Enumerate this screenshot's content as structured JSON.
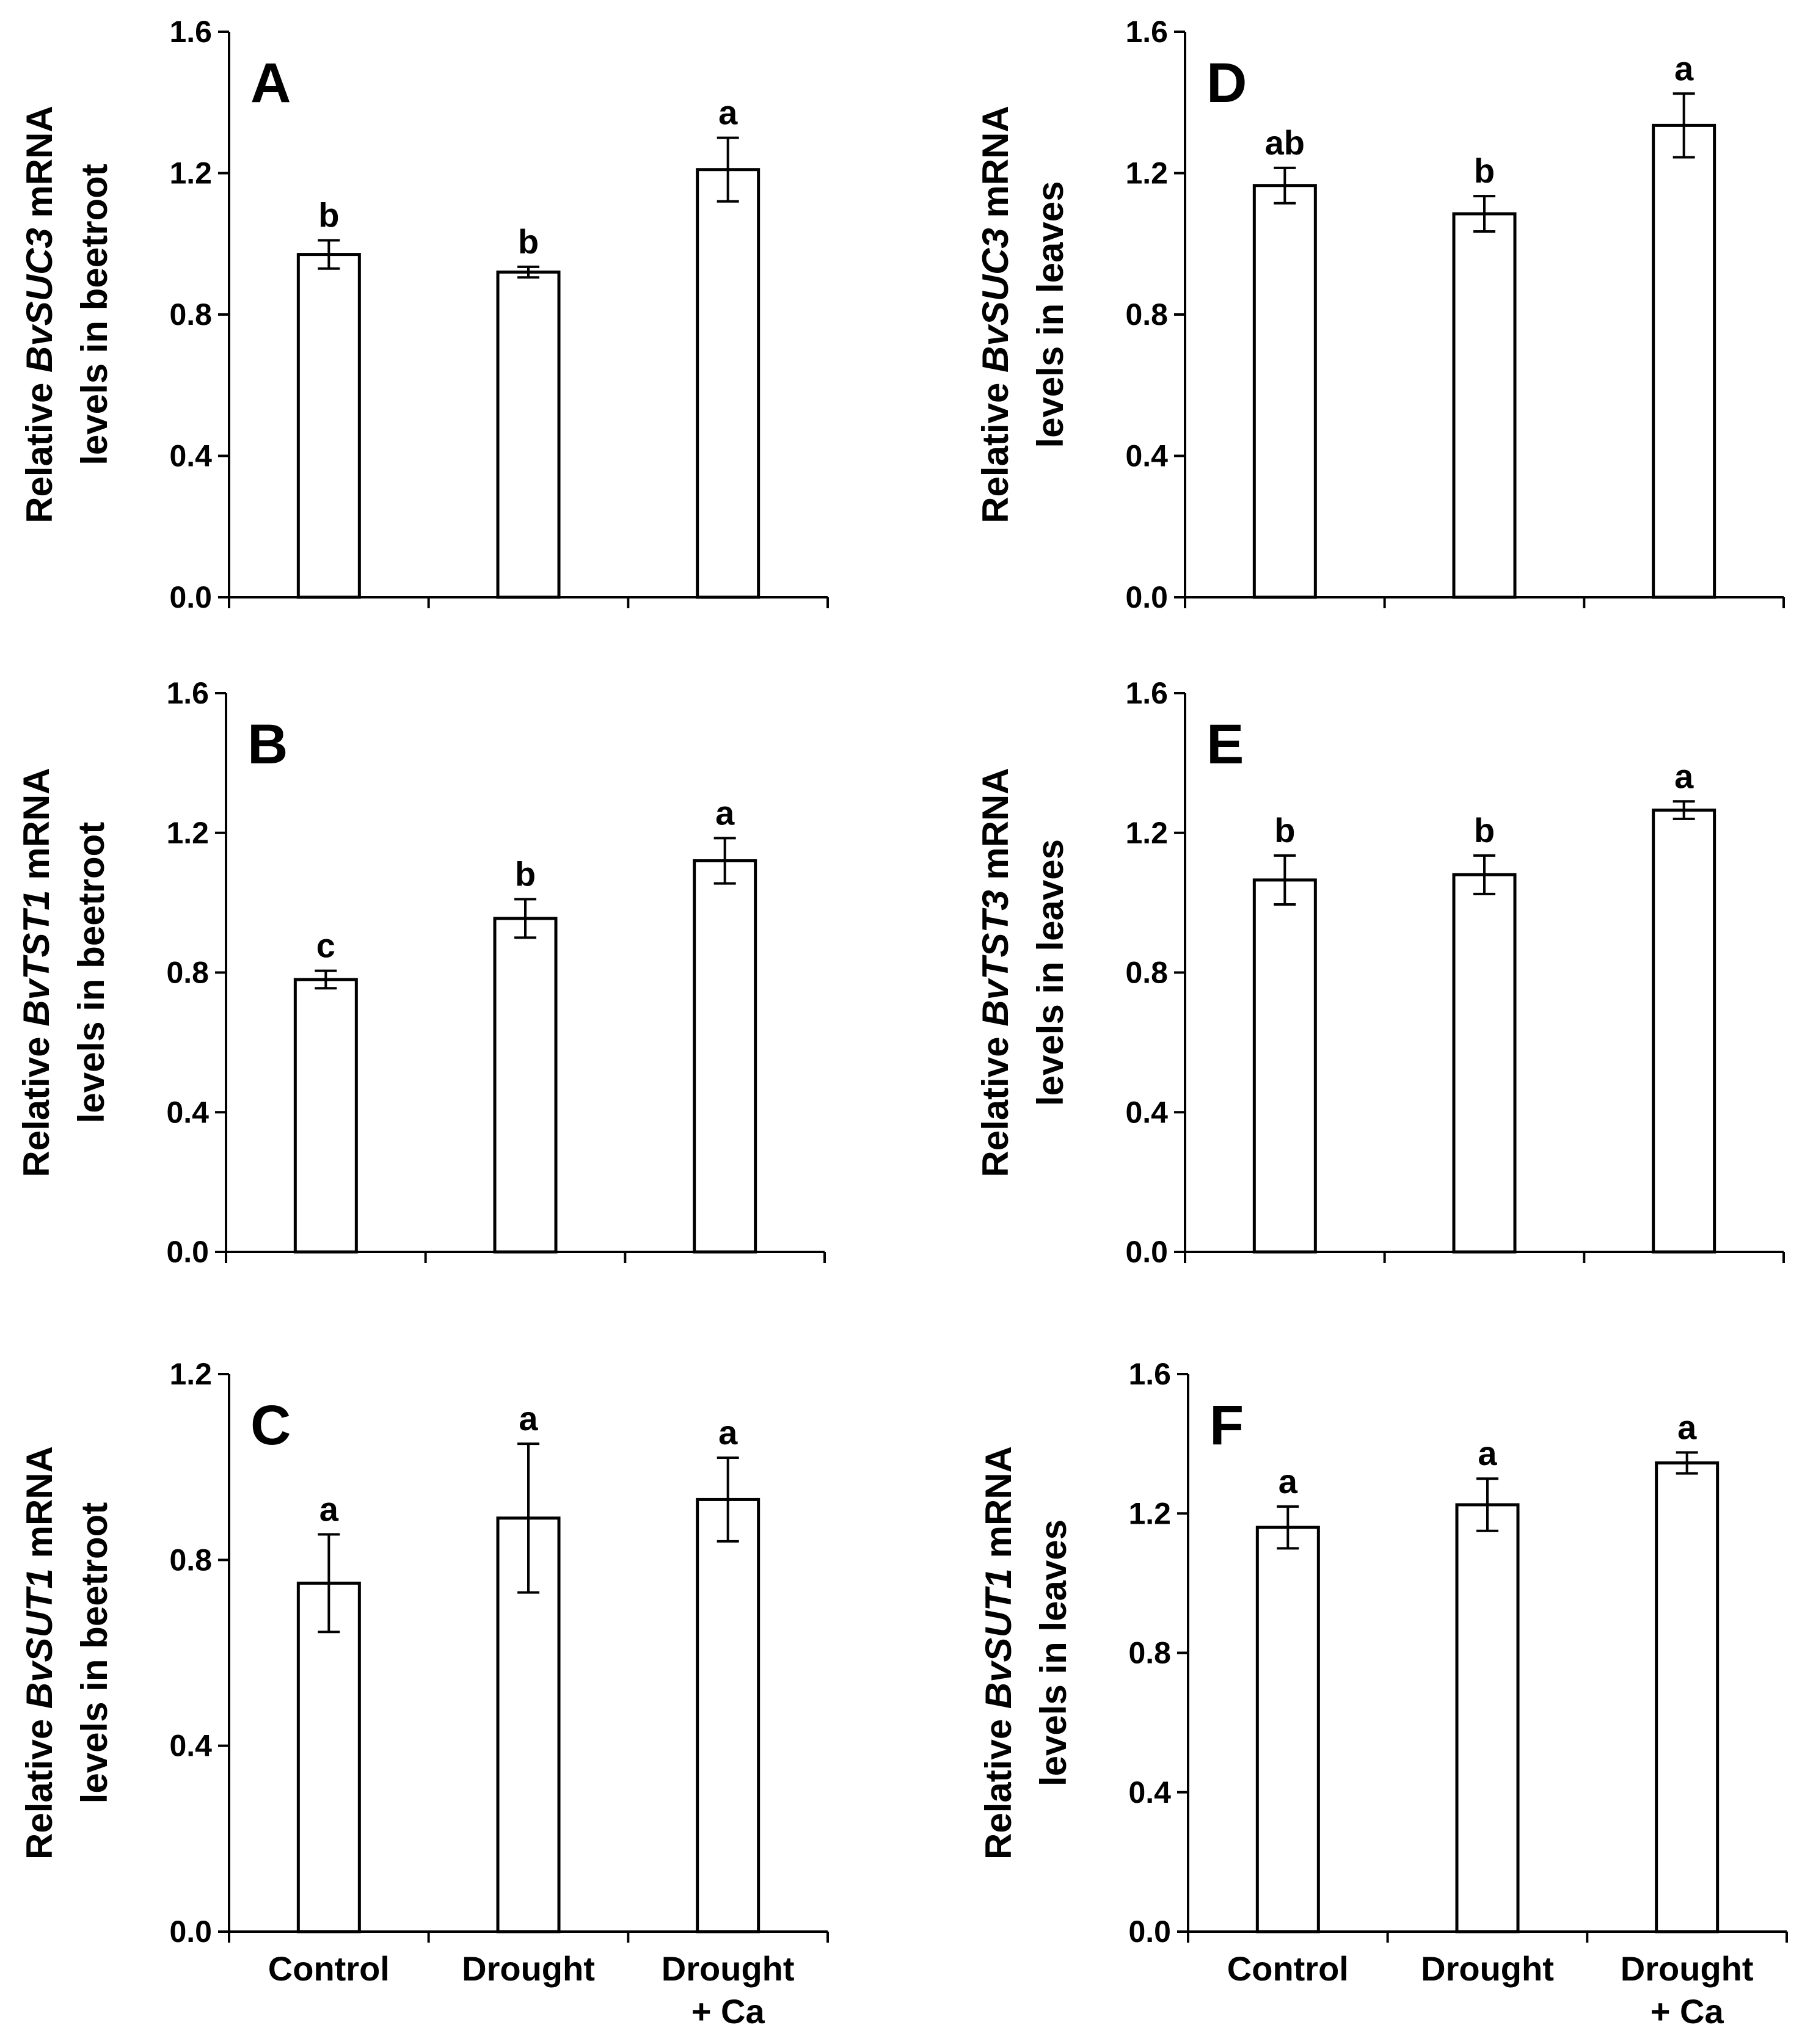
{
  "figure": {
    "categories": [
      [
        "Control"
      ],
      [
        "Drought"
      ],
      [
        "Drought",
        "+ Ca"
      ]
    ]
  },
  "chart_data": [
    {
      "id": "A",
      "type": "bar",
      "panel_label": "A",
      "ylabel_parts": [
        "Relative ",
        "BvSUC3",
        " mRNA"
      ],
      "ylabel_line2": "levels in beetroot",
      "ylim": [
        0,
        1.6
      ],
      "yticks": [
        "0.0",
        "0.4",
        "0.8",
        "1.2",
        "1.6"
      ],
      "categories": [
        "Control",
        "Drought",
        "Drought + Ca"
      ],
      "values": [
        0.97,
        0.92,
        1.21
      ],
      "errors": [
        0.04,
        0.015,
        0.09
      ],
      "significance": [
        "b",
        "b",
        "a"
      ],
      "show_xlabels": false
    },
    {
      "id": "B",
      "type": "bar",
      "panel_label": "B",
      "ylabel_parts": [
        "Relative ",
        "BvTST1",
        " mRNA"
      ],
      "ylabel_line2": "levels in beetroot",
      "ylim": [
        0,
        1.6
      ],
      "yticks": [
        "0.0",
        "0.4",
        "0.8",
        "1.2",
        "1.6"
      ],
      "categories": [
        "Control",
        "Drought",
        "Drought + Ca"
      ],
      "values": [
        0.78,
        0.955,
        1.12
      ],
      "errors": [
        0.025,
        0.055,
        0.065
      ],
      "significance": [
        "c",
        "b",
        "a"
      ],
      "show_xlabels": false
    },
    {
      "id": "C",
      "type": "bar",
      "panel_label": "C",
      "ylabel_parts": [
        "Relative ",
        "BvSUT1",
        " mRNA"
      ],
      "ylabel_line2": "levels in beetroot",
      "ylim": [
        0,
        1.2
      ],
      "yticks": [
        "0.0",
        "0.4",
        "0.8",
        "1.2"
      ],
      "categories": [
        "Control",
        "Drought",
        "Drought + Ca"
      ],
      "values": [
        0.75,
        0.89,
        0.93
      ],
      "errors": [
        0.105,
        0.16,
        0.09
      ],
      "significance": [
        "a",
        "a",
        "a"
      ],
      "show_xlabels": true
    },
    {
      "id": "D",
      "type": "bar",
      "panel_label": "D",
      "ylabel_parts": [
        "Relative ",
        "BvSUC3",
        " mRNA"
      ],
      "ylabel_line2": "levels in leaves",
      "ylim": [
        0,
        1.6
      ],
      "yticks": [
        "0.0",
        "0.4",
        "0.8",
        "1.2",
        "1.6"
      ],
      "categories": [
        "Control",
        "Drought",
        "Drought + Ca"
      ],
      "values": [
        1.165,
        1.085,
        1.335
      ],
      "errors": [
        0.05,
        0.05,
        0.09
      ],
      "significance": [
        "ab",
        "b",
        "a"
      ],
      "show_xlabels": false
    },
    {
      "id": "E",
      "type": "bar",
      "panel_label": "E",
      "ylabel_parts": [
        "Relative ",
        "BvTST3",
        " mRNA"
      ],
      "ylabel_line2": "levels in leaves",
      "ylim": [
        0,
        1.6
      ],
      "yticks": [
        "0.0",
        "0.4",
        "0.8",
        "1.2",
        "1.6"
      ],
      "categories": [
        "Control",
        "Drought",
        "Drought + Ca"
      ],
      "values": [
        1.065,
        1.08,
        1.265
      ],
      "errors": [
        0.07,
        0.055,
        0.025
      ],
      "significance": [
        "b",
        "b",
        "a"
      ],
      "show_xlabels": false
    },
    {
      "id": "F",
      "type": "bar",
      "panel_label": "F",
      "ylabel_parts": [
        "Relative ",
        "BvSUT1",
        " mRNA"
      ],
      "ylabel_line2": "levels in leaves",
      "ylim": [
        0,
        1.6
      ],
      "yticks": [
        "0.0",
        "0.4",
        "0.8",
        "1.2",
        "1.6"
      ],
      "categories": [
        "Control",
        "Drought",
        "Drought + Ca"
      ],
      "values": [
        1.16,
        1.225,
        1.345
      ],
      "errors": [
        0.06,
        0.075,
        0.03
      ],
      "significance": [
        "a",
        "a",
        "a"
      ],
      "show_xlabels": true
    }
  ]
}
